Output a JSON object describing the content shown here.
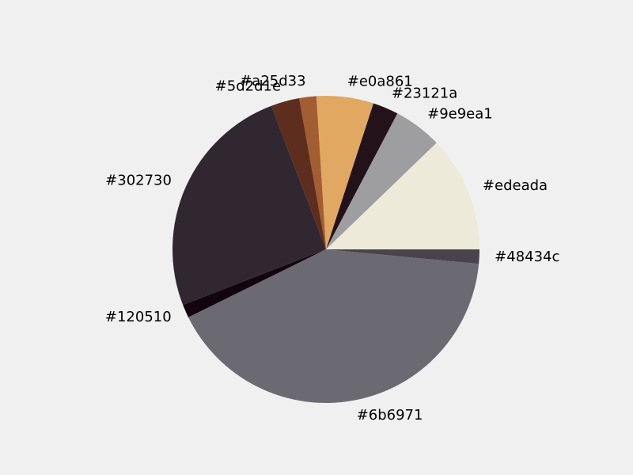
{
  "chart_data": {
    "type": "pie",
    "title": "",
    "background": "#f0f0f0",
    "start_angle_deg": 0,
    "direction": "counterclockwise",
    "slices": [
      {
        "label": "#edeada",
        "value": 12.2,
        "color": "#edeada"
      },
      {
        "label": "#9e9ea1",
        "value": 5.1,
        "color": "#9e9ea1"
      },
      {
        "label": "#23121a",
        "value": 2.7,
        "color": "#23121a"
      },
      {
        "label": "#e0a861",
        "value": 6.0,
        "color": "#e0a861"
      },
      {
        "label": "#a25d33",
        "value": 1.8,
        "color": "#a25d33"
      },
      {
        "label": "#5d2d1e",
        "value": 3.0,
        "color": "#5d2d1e"
      },
      {
        "label": "#302730",
        "value": 25.1,
        "color": "#302730"
      },
      {
        "label": "#120510",
        "value": 1.4,
        "color": "#120510"
      },
      {
        "label": "#6b6971",
        "value": 41.2,
        "color": "#6b6971"
      },
      {
        "label": "#48434c",
        "value": 1.5,
        "color": "#48434c"
      }
    ]
  }
}
